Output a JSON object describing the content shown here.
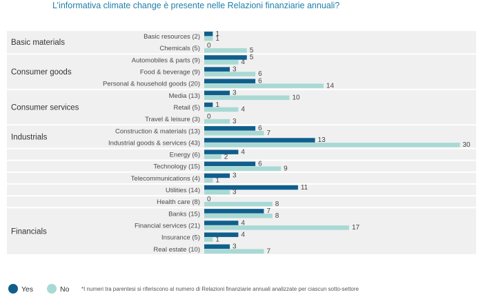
{
  "title": "L’informativa climate change è presente nelle Relazioni finanziarie annuali?",
  "colors": {
    "yes": "#0f5f8c",
    "no": "#a9d9d4",
    "band": "#f0f0f0",
    "title": "#1e7fa8"
  },
  "legend": {
    "yes": "Yes",
    "no": "No"
  },
  "footnote": "*I numeri tra parentesi si riferiscono al numero di Relazioni finanziarie annuali analizzate per ciascun sotto-settore",
  "chart_data": {
    "type": "bar",
    "orientation": "horizontal",
    "grid": false,
    "legend_position": "bottom-left",
    "groups": [
      {
        "name": "Basic materials",
        "categories": [
          "Basic resources (2)",
          "Chemicals (5)"
        ]
      },
      {
        "name": "Consumer goods",
        "categories": [
          "Automobiles & parts (9)",
          "Food & beverage (9)",
          "Personal & household goods (20)"
        ]
      },
      {
        "name": "Consumer services",
        "categories": [
          "Media (13)",
          "Retail (5)",
          "Travel & leisure (3)"
        ]
      },
      {
        "name": "Industrials",
        "categories": [
          "Construction & materials (13)",
          "Industrial goods & services (43)"
        ]
      },
      {
        "name": "",
        "categories": [
          "Energy (6)"
        ]
      },
      {
        "name": "",
        "categories": [
          "Technology (15)"
        ]
      },
      {
        "name": "",
        "categories": [
          "Telecommunications (4)"
        ]
      },
      {
        "name": "",
        "categories": [
          "Utilities (14)"
        ]
      },
      {
        "name": "",
        "categories": [
          "Health care (8)"
        ]
      },
      {
        "name": "Financials",
        "categories": [
          "Banks (15)",
          "Financial services (21)",
          "Insurance (5)",
          "Real estate (10)"
        ]
      }
    ],
    "categories": [
      "Basic resources (2)",
      "Chemicals (5)",
      "Automobiles & parts (9)",
      "Food & beverage (9)",
      "Personal & household goods (20)",
      "Media (13)",
      "Retail (5)",
      "Travel & leisure (3)",
      "Construction & materials (13)",
      "Industrial goods & services (43)",
      "Energy (6)",
      "Technology (15)",
      "Telecommunications (4)",
      "Utilities (14)",
      "Health care (8)",
      "Banks (15)",
      "Financial services (21)",
      "Insurance (5)",
      "Real estate (10)"
    ],
    "series": [
      {
        "name": "Yes",
        "values": [
          1,
          0,
          5,
          3,
          6,
          3,
          1,
          0,
          6,
          13,
          4,
          6,
          3,
          11,
          0,
          7,
          4,
          4,
          3
        ]
      },
      {
        "name": "No",
        "values": [
          1,
          5,
          4,
          6,
          14,
          10,
          4,
          3,
          7,
          30,
          2,
          9,
          1,
          3,
          8,
          8,
          17,
          1,
          7
        ]
      }
    ],
    "xlim": [
      0,
      30
    ]
  }
}
